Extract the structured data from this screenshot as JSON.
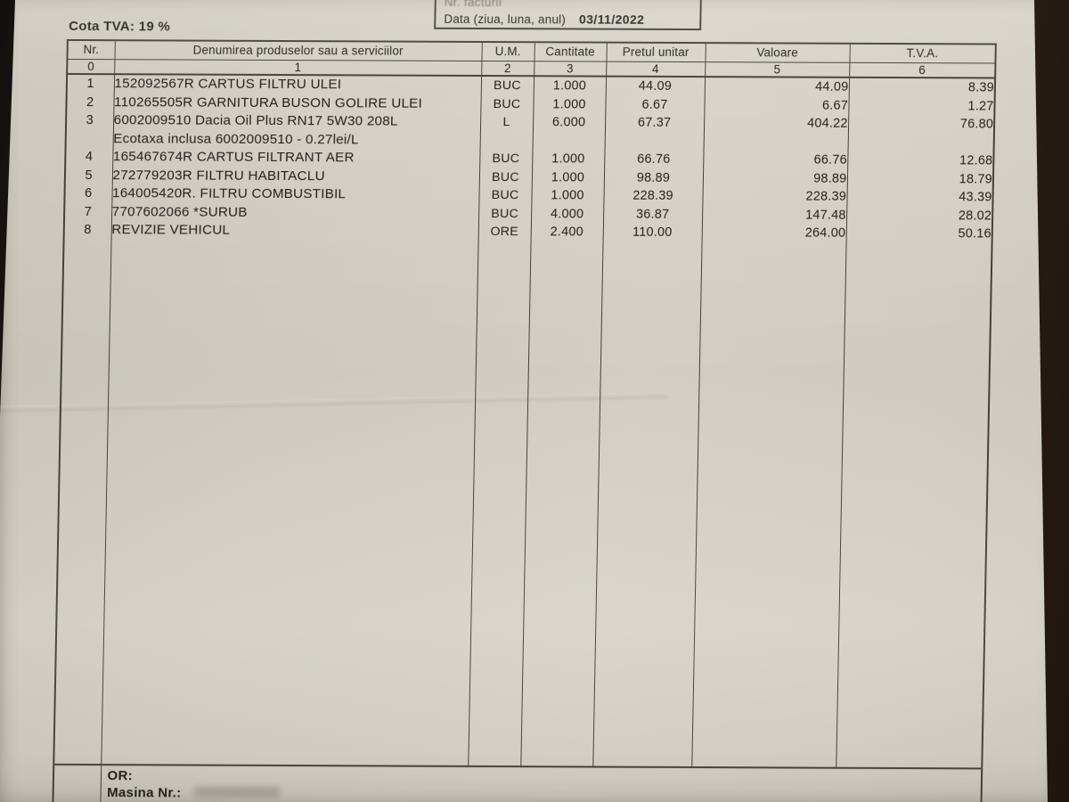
{
  "header": {
    "cota_tva": "Cota TVA: 19 %",
    "invoice_box": {
      "nr_facturii_label": "Nr. facturii",
      "date_label": "Data (ziua, luna, anul)",
      "date_value": "03/11/2022"
    }
  },
  "table": {
    "headers": {
      "nr": "Nr.",
      "den": "Denumirea produselor sau a serviciilor",
      "um": "U.M.",
      "cant": "Cantitate",
      "pret": "Pretul unitar",
      "val": "Valoare",
      "tva": "T.V.A."
    },
    "col_numbers": [
      "0",
      "1",
      "2",
      "3",
      "4",
      "5",
      "6"
    ],
    "rows": [
      {
        "nr": "1",
        "name": "152092567R CARTUS FILTRU ULEI",
        "um": "BUC",
        "qty": "1.000",
        "unit_price": "44.09",
        "value": "44.09",
        "vat": "8.39"
      },
      {
        "nr": "2",
        "name": "110265505R GARNITURA BUSON GOLIRE ULEI",
        "um": "BUC",
        "qty": "1.000",
        "unit_price": "6.67",
        "value": "6.67",
        "vat": "1.27"
      },
      {
        "nr": "3",
        "name": "6002009510 Dacia Oil Plus RN17 5W30 208L",
        "name2": "Ecotaxa inclusa 6002009510 - 0.27lei/L",
        "um": "L",
        "qty": "6.000",
        "unit_price": "67.37",
        "value": "404.22",
        "vat": "76.80"
      },
      {
        "nr": "4",
        "name": "165467674R CARTUS FILTRANT AER",
        "um": "BUC",
        "qty": "1.000",
        "unit_price": "66.76",
        "value": "66.76",
        "vat": "12.68"
      },
      {
        "nr": "5",
        "name": "272779203R FILTRU HABITACLU",
        "um": "BUC",
        "qty": "1.000",
        "unit_price": "98.89",
        "value": "98.89",
        "vat": "18.79"
      },
      {
        "nr": "6",
        "name": "164005420R. FILTRU COMBUSTIBIL",
        "um": "BUC",
        "qty": "1.000",
        "unit_price": "228.39",
        "value": "228.39",
        "vat": "43.39"
      },
      {
        "nr": "7",
        "name": "7707602066 *SURUB",
        "um": "BUC",
        "qty": "4.000",
        "unit_price": "36.87",
        "value": "147.48",
        "vat": "28.02"
      },
      {
        "nr": "8",
        "name": "REVIZIE VEHICUL",
        "um": "ORE",
        "qty": "2.400",
        "unit_price": "110.00",
        "value": "264.00",
        "vat": "50.16"
      }
    ]
  },
  "footer": {
    "or_label": "OR:",
    "masina_label": "Masina Nr.:"
  },
  "colors": {
    "paper": "#d6d2c8",
    "background_dark": "#2a1e15",
    "table_line": "#45423b",
    "ink": "#23211c"
  }
}
